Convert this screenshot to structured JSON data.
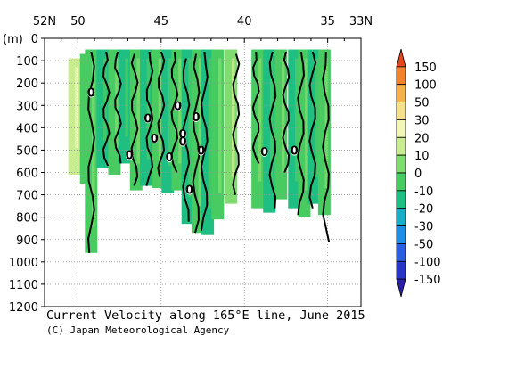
{
  "chart_data": {
    "type": "heatmap",
    "title": "Current Velocity along 165°E line, June 2015",
    "credit": "(C) Japan Meteorological Agency",
    "xlabel": "",
    "ylabel": "(m)",
    "x_direction": "decreasing",
    "x_ticks": [
      {
        "value": 52,
        "label": "52N"
      },
      {
        "value": 50,
        "label": "50"
      },
      {
        "value": 45,
        "label": "45"
      },
      {
        "value": 40,
        "label": "40"
      },
      {
        "value": 35,
        "label": "35"
      },
      {
        "value": 33,
        "label": "33N"
      }
    ],
    "xlim": [
      52,
      33
    ],
    "y_ticks": [
      0,
      100,
      200,
      300,
      400,
      500,
      600,
      700,
      800,
      900,
      1000,
      1100,
      1200
    ],
    "ylim": [
      0,
      1200
    ],
    "grid": true,
    "legend": "right",
    "colorbar": {
      "levels": [
        150,
        100,
        50,
        30,
        20,
        10,
        0,
        -10,
        -20,
        -30,
        -50,
        -100,
        -150
      ],
      "colors": [
        "#e8461b",
        "#f2832c",
        "#f6b24a",
        "#f7e08a",
        "#f2f7b8",
        "#c8ec90",
        "#7fdc6e",
        "#48cc62",
        "#1fbf84",
        "#1aaec7",
        "#1e8ee6",
        "#2a5fe3",
        "#2536c8",
        "#2a20a8"
      ]
    },
    "zero_contour_labels": [
      {
        "lat": 49.2,
        "depth": 245
      },
      {
        "lat": 45.8,
        "depth": 360
      },
      {
        "lat": 45.4,
        "depth": 450
      },
      {
        "lat": 44.0,
        "depth": 305
      },
      {
        "lat": 46.9,
        "depth": 525
      },
      {
        "lat": 44.5,
        "depth": 535
      },
      {
        "lat": 43.7,
        "depth": 430
      },
      {
        "lat": 43.7,
        "depth": 465
      },
      {
        "lat": 42.9,
        "depth": 355
      },
      {
        "lat": 42.6,
        "depth": 505
      },
      {
        "lat": 43.3,
        "depth": 680
      },
      {
        "lat": 38.8,
        "depth": 510
      },
      {
        "lat": 37.0,
        "depth": 505
      }
    ],
    "zero_label_text": "0",
    "columns": [
      {
        "lat": 50.2,
        "top": 90,
        "bottom": 610,
        "value": 10
      },
      {
        "lat": 49.5,
        "top": 70,
        "bottom": 650,
        "value": -10
      },
      {
        "lat": 49.2,
        "top": 50,
        "bottom": 960,
        "value": -10
      },
      {
        "lat": 48.5,
        "top": 50,
        "bottom": 580,
        "value": -20
      },
      {
        "lat": 47.8,
        "top": 50,
        "bottom": 610,
        "value": -10
      },
      {
        "lat": 47.2,
        "top": 50,
        "bottom": 560,
        "value": -20
      },
      {
        "lat": 46.5,
        "top": 50,
        "bottom": 680,
        "value": -10
      },
      {
        "lat": 45.9,
        "top": 50,
        "bottom": 660,
        "value": -20
      },
      {
        "lat": 45.2,
        "top": 50,
        "bottom": 670,
        "value": -10
      },
      {
        "lat": 44.6,
        "top": 50,
        "bottom": 690,
        "value": -20
      },
      {
        "lat": 44.0,
        "top": 50,
        "bottom": 680,
        "value": -10
      },
      {
        "lat": 43.4,
        "top": 50,
        "bottom": 830,
        "value": -20
      },
      {
        "lat": 42.8,
        "top": 50,
        "bottom": 870,
        "value": -10
      },
      {
        "lat": 42.2,
        "top": 50,
        "bottom": 880,
        "value": -20
      },
      {
        "lat": 41.6,
        "top": 50,
        "bottom": 810,
        "value": -10
      },
      {
        "lat": 40.8,
        "top": 50,
        "bottom": 740,
        "value": 0
      },
      {
        "lat": 39.2,
        "top": 50,
        "bottom": 760,
        "value": -10
      },
      {
        "lat": 38.5,
        "top": 50,
        "bottom": 780,
        "value": -20
      },
      {
        "lat": 37.8,
        "top": 50,
        "bottom": 720,
        "value": -10
      },
      {
        "lat": 37.0,
        "top": 50,
        "bottom": 760,
        "value": -20
      },
      {
        "lat": 36.4,
        "top": 50,
        "bottom": 800,
        "value": -10
      },
      {
        "lat": 35.8,
        "top": 50,
        "bottom": 740,
        "value": -20
      },
      {
        "lat": 35.2,
        "top": 50,
        "bottom": 790,
        "value": -10
      }
    ],
    "zero_contours": [
      {
        "lat": 49.2,
        "top": 60,
        "bottom": 960
      },
      {
        "lat": 48.3,
        "top": 60,
        "bottom": 570
      },
      {
        "lat": 47.6,
        "top": 60,
        "bottom": 560
      },
      {
        "lat": 46.6,
        "top": 70,
        "bottom": 660
      },
      {
        "lat": 45.7,
        "top": 60,
        "bottom": 660
      },
      {
        "lat": 45.0,
        "top": 60,
        "bottom": 620
      },
      {
        "lat": 44.2,
        "top": 60,
        "bottom": 600
      },
      {
        "lat": 43.5,
        "top": 90,
        "bottom": 820
      },
      {
        "lat": 42.9,
        "top": 70,
        "bottom": 870
      },
      {
        "lat": 42.4,
        "top": 60,
        "bottom": 860
      },
      {
        "lat": 40.5,
        "top": 70,
        "bottom": 700
      },
      {
        "lat": 39.3,
        "top": 60,
        "bottom": 560
      },
      {
        "lat": 38.3,
        "top": 60,
        "bottom": 760
      },
      {
        "lat": 37.5,
        "top": 60,
        "bottom": 600
      },
      {
        "lat": 36.6,
        "top": 60,
        "bottom": 790
      },
      {
        "lat": 35.9,
        "top": 60,
        "bottom": 760
      },
      {
        "lat": 35.1,
        "top": 60,
        "bottom": 910
      }
    ]
  }
}
